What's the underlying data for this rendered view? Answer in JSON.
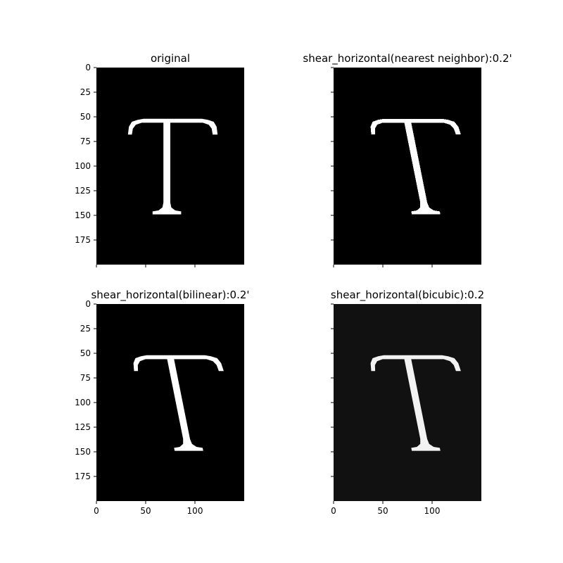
{
  "chart_data": [
    {
      "type": "image",
      "title": "original",
      "background": "#000000",
      "glyph": "T",
      "glyph_color": "#ffffff",
      "shear": 0.0,
      "interpolation": "none",
      "xlim": [
        0,
        150
      ],
      "ylim": [
        200,
        0
      ],
      "x_ticks": [
        0,
        50,
        100
      ],
      "y_ticks": [
        0,
        25,
        50,
        75,
        100,
        125,
        150,
        175
      ],
      "show_x_tick_labels": false,
      "show_y_tick_labels": true
    },
    {
      "type": "image",
      "title": "shear_horizontal(nearest neighbor):0.2'",
      "background": "#000000",
      "glyph": "T",
      "glyph_color": "#ffffff",
      "shear": 0.2,
      "interpolation": "nearest",
      "xlim": [
        0,
        150
      ],
      "ylim": [
        200,
        0
      ],
      "x_ticks": [
        0,
        50,
        100
      ],
      "y_ticks": [
        0,
        25,
        50,
        75,
        100,
        125,
        150,
        175
      ],
      "show_x_tick_labels": false,
      "show_y_tick_labels": false
    },
    {
      "type": "image",
      "title": "shear_horizontal(bilinear):0.2'",
      "background": "#000000",
      "glyph": "T",
      "glyph_color": "#ffffff",
      "shear": 0.2,
      "interpolation": "bilinear",
      "xlim": [
        0,
        150
      ],
      "ylim": [
        200,
        0
      ],
      "x_ticks": [
        0,
        50,
        100
      ],
      "y_ticks": [
        0,
        25,
        50,
        75,
        100,
        125,
        150,
        175
      ],
      "show_x_tick_labels": true,
      "show_y_tick_labels": true
    },
    {
      "type": "image",
      "title": "shear_horizontal(bicubic):0.2",
      "background": "#111111",
      "glyph": "T",
      "glyph_color": "#f2f2f2",
      "shear": 0.2,
      "interpolation": "bicubic",
      "xlim": [
        0,
        150
      ],
      "ylim": [
        200,
        0
      ],
      "x_ticks": [
        0,
        50,
        100
      ],
      "y_ticks": [
        0,
        25,
        50,
        75,
        100,
        125,
        150,
        175
      ],
      "show_x_tick_labels": true,
      "show_y_tick_labels": false
    }
  ]
}
